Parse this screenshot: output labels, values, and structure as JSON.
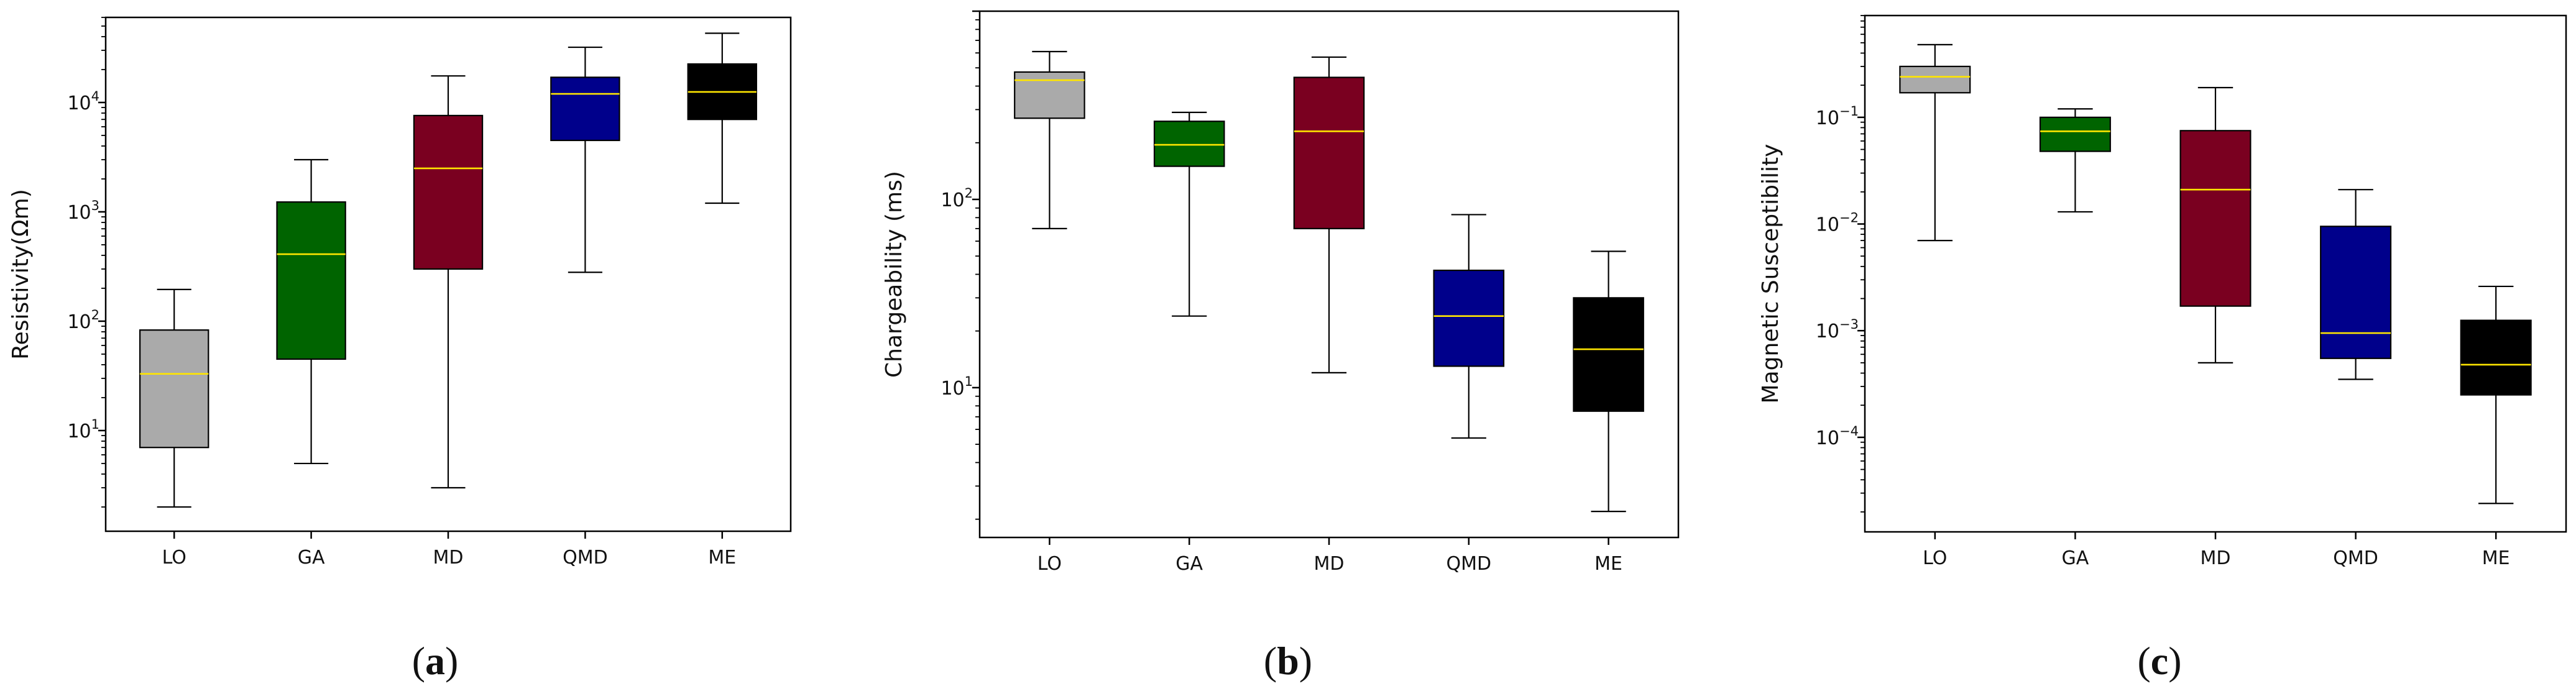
{
  "chart_data": [
    {
      "type": "boxplot",
      "panel_label": "a",
      "ylabel": "Resistivity(Ωm)",
      "yscale": "log",
      "ylim": [
        1.2,
        60000
      ],
      "yticks": [
        {
          "value": 10,
          "base": "10",
          "exp": "1"
        },
        {
          "value": 100,
          "base": "10",
          "exp": "2"
        },
        {
          "value": 1000,
          "base": "10",
          "exp": "3"
        },
        {
          "value": 10000,
          "base": "10",
          "exp": "4"
        }
      ],
      "categories": [
        "LO",
        "GA",
        "MD",
        "QMD",
        "ME"
      ],
      "colors": [
        "#aaaaaa",
        "#006400",
        "#7a0020",
        "#00008b",
        "#000000"
      ],
      "median_color": "#ffe600",
      "boxes": [
        {
          "whislo": 2,
          "q1": 7,
          "med": 33,
          "q3": 83,
          "whishi": 195
        },
        {
          "whislo": 5,
          "q1": 45,
          "med": 410,
          "q3": 1230,
          "whishi": 3000
        },
        {
          "whislo": 3,
          "q1": 300,
          "med": 2500,
          "q3": 7600,
          "whishi": 17500
        },
        {
          "whislo": 280,
          "q1": 4500,
          "med": 12000,
          "q3": 17000,
          "whishi": 32000
        },
        {
          "whislo": 1200,
          "q1": 7000,
          "med": 12500,
          "q3": 22500,
          "whishi": 43000
        }
      ]
    },
    {
      "type": "boxplot",
      "panel_label": "b",
      "ylabel": "Chargeability (ms)",
      "yscale": "log",
      "ylim": [
        1.6,
        1000
      ],
      "yticks": [
        {
          "value": 10,
          "base": "10",
          "exp": "1"
        },
        {
          "value": 100,
          "base": "10",
          "exp": "2"
        }
      ],
      "categories": [
        "LO",
        "GA",
        "MD",
        "QMD",
        "ME"
      ],
      "colors": [
        "#aaaaaa",
        "#006400",
        "#7a0020",
        "#00008b",
        "#000000"
      ],
      "median_color": "#ffe600",
      "boxes": [
        {
          "whislo": 70,
          "q1": 270,
          "med": 430,
          "q3": 475,
          "whishi": 610
        },
        {
          "whislo": 24,
          "q1": 150,
          "med": 195,
          "q3": 260,
          "whishi": 290
        },
        {
          "whislo": 12,
          "q1": 70,
          "med": 230,
          "q3": 445,
          "whishi": 570
        },
        {
          "whislo": 5.4,
          "q1": 13,
          "med": 24,
          "q3": 42,
          "whishi": 83
        },
        {
          "whislo": 2.2,
          "q1": 7.5,
          "med": 16,
          "q3": 30,
          "whishi": 53
        }
      ]
    },
    {
      "type": "boxplot",
      "panel_label": "c",
      "ylabel": "Magnetic Susceptibility",
      "yscale": "log",
      "ylim": [
        1.3e-05,
        0.9
      ],
      "yticks": [
        {
          "value": 0.0001,
          "base": "10",
          "exp": "−4"
        },
        {
          "value": 0.001,
          "base": "10",
          "exp": "−3"
        },
        {
          "value": 0.01,
          "base": "10",
          "exp": "−2"
        },
        {
          "value": 0.1,
          "base": "10",
          "exp": "−1"
        }
      ],
      "categories": [
        "LO",
        "GA",
        "MD",
        "QMD",
        "ME"
      ],
      "colors": [
        "#aaaaaa",
        "#006400",
        "#7a0020",
        "#00008b",
        "#000000"
      ],
      "median_color": "#ffe600",
      "boxes": [
        {
          "whislo": 0.007,
          "q1": 0.17,
          "med": 0.24,
          "q3": 0.3,
          "whishi": 0.48
        },
        {
          "whislo": 0.013,
          "q1": 0.048,
          "med": 0.074,
          "q3": 0.1,
          "whishi": 0.12
        },
        {
          "whislo": 0.0005,
          "q1": 0.0017,
          "med": 0.021,
          "q3": 0.075,
          "whishi": 0.19
        },
        {
          "whislo": 0.00035,
          "q1": 0.00055,
          "med": 0.00095,
          "q3": 0.0095,
          "whishi": 0.021
        },
        {
          "whislo": 2.4e-05,
          "q1": 0.00025,
          "med": 0.00048,
          "q3": 0.00125,
          "whishi": 0.0026
        }
      ]
    }
  ]
}
